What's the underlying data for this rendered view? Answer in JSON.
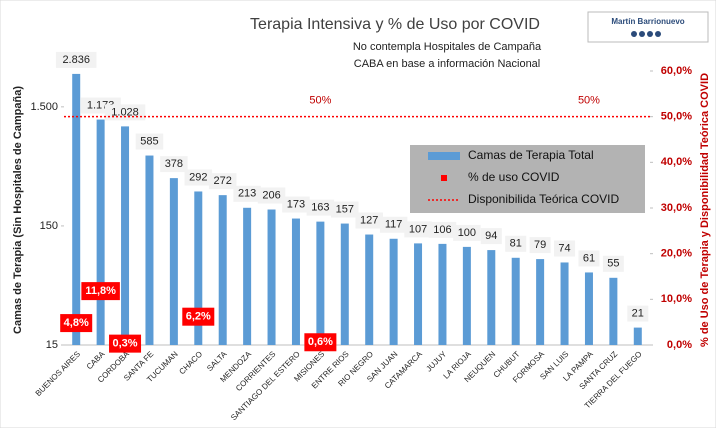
{
  "chart_data": {
    "type": "bar",
    "title": "Terapia Intensiva y % de Uso por COVID",
    "subtitle": [
      "No contempla Hospitales de Campaña",
      "CABA  en base a información Nacional"
    ],
    "badge": "Martín Barrionuevo",
    "ylabel": "Camas de Terapia (Sin Hospitales de Campaña)",
    "y2label": "% de Uso de Terapia y Disponibilidad Teórica COVID",
    "log_scale": true,
    "legend_position": "right",
    "categories": [
      "BUENOS AIRES",
      "CABA",
      "CORDOBA",
      "SANTA FE",
      "TUCUMAN",
      "CHACO",
      "SALTA",
      "MENDOZA",
      "CORRIENTES",
      "SANTIAGO DEL ESTERO",
      "MISIONES",
      "ENTRE RIOS",
      "RIO NEGRO",
      "SAN JUAN",
      "CATAMARCA",
      "JUJUY",
      "LA RIOJA",
      "NEUQUEN",
      "CHUBUT",
      "FORMOSA",
      "SAN LUIS",
      "LA PAMPA",
      "SANTA CRUZ",
      "TIERRA DEL FUEGO"
    ],
    "series": [
      {
        "name": "Camas de Terapia Total",
        "color": "#5b9bd5",
        "kind": "bar",
        "values": [
          2836,
          1173,
          1028,
          585,
          378,
          292,
          272,
          213,
          206,
          173,
          163,
          157,
          127,
          117,
          107,
          106,
          100,
          94,
          81,
          79,
          74,
          61,
          55,
          21
        ],
        "value_labels": [
          "2.836",
          "1.173",
          "1.028",
          "585",
          "378",
          "292",
          "272",
          "213",
          "206",
          "173",
          "163",
          "157",
          "127",
          "117",
          "107",
          "106",
          "100",
          "94",
          "81",
          "79",
          "74",
          "61",
          "55",
          "21"
        ]
      },
      {
        "name": "% de uso COVID",
        "color": "#ff0000",
        "kind": "marker",
        "axis": "y2",
        "values": [
          4.8,
          11.8,
          0.3,
          null,
          null,
          6.2,
          null,
          null,
          null,
          null,
          0.6,
          null,
          null,
          null,
          null,
          null,
          null,
          null,
          null,
          null,
          null,
          null,
          null,
          null
        ],
        "value_labels": [
          "4,8%",
          "11,8%",
          "0,3%",
          null,
          null,
          "6,2%",
          null,
          null,
          null,
          null,
          "0,6%",
          null,
          null,
          null,
          null,
          null,
          null,
          null,
          null,
          null,
          null,
          null,
          null,
          null
        ]
      },
      {
        "name": "Disponibilida Teórica COVID",
        "color": "#ff0000",
        "kind": "dotted",
        "axis": "y2",
        "values": [
          50,
          50,
          50,
          50,
          50,
          50,
          50,
          50,
          50,
          50,
          50,
          50,
          50,
          50,
          50,
          50,
          50,
          50,
          50,
          50,
          50,
          50,
          50,
          50
        ]
      }
    ],
    "annotations": [
      {
        "text": "50%",
        "category": 10
      },
      {
        "text": "50%",
        "category": 21
      }
    ],
    "ylim": [
      15,
      3000
    ],
    "yticks": [
      15,
      150,
      {
        "value": 1500,
        "label": "1.500"
      }
    ],
    "y2lim": [
      0,
      60
    ],
    "y2ticks": [
      {
        "value": 0,
        "label": "0,0%"
      },
      {
        "value": 10,
        "label": "10,0%"
      },
      {
        "value": 20,
        "label": "20,0%"
      },
      {
        "value": 30,
        "label": "30,0%"
      },
      {
        "value": 40,
        "label": "40,0%"
      },
      {
        "value": 50,
        "label": "50,0%"
      },
      {
        "value": 60,
        "label": "60,0%"
      }
    ]
  }
}
